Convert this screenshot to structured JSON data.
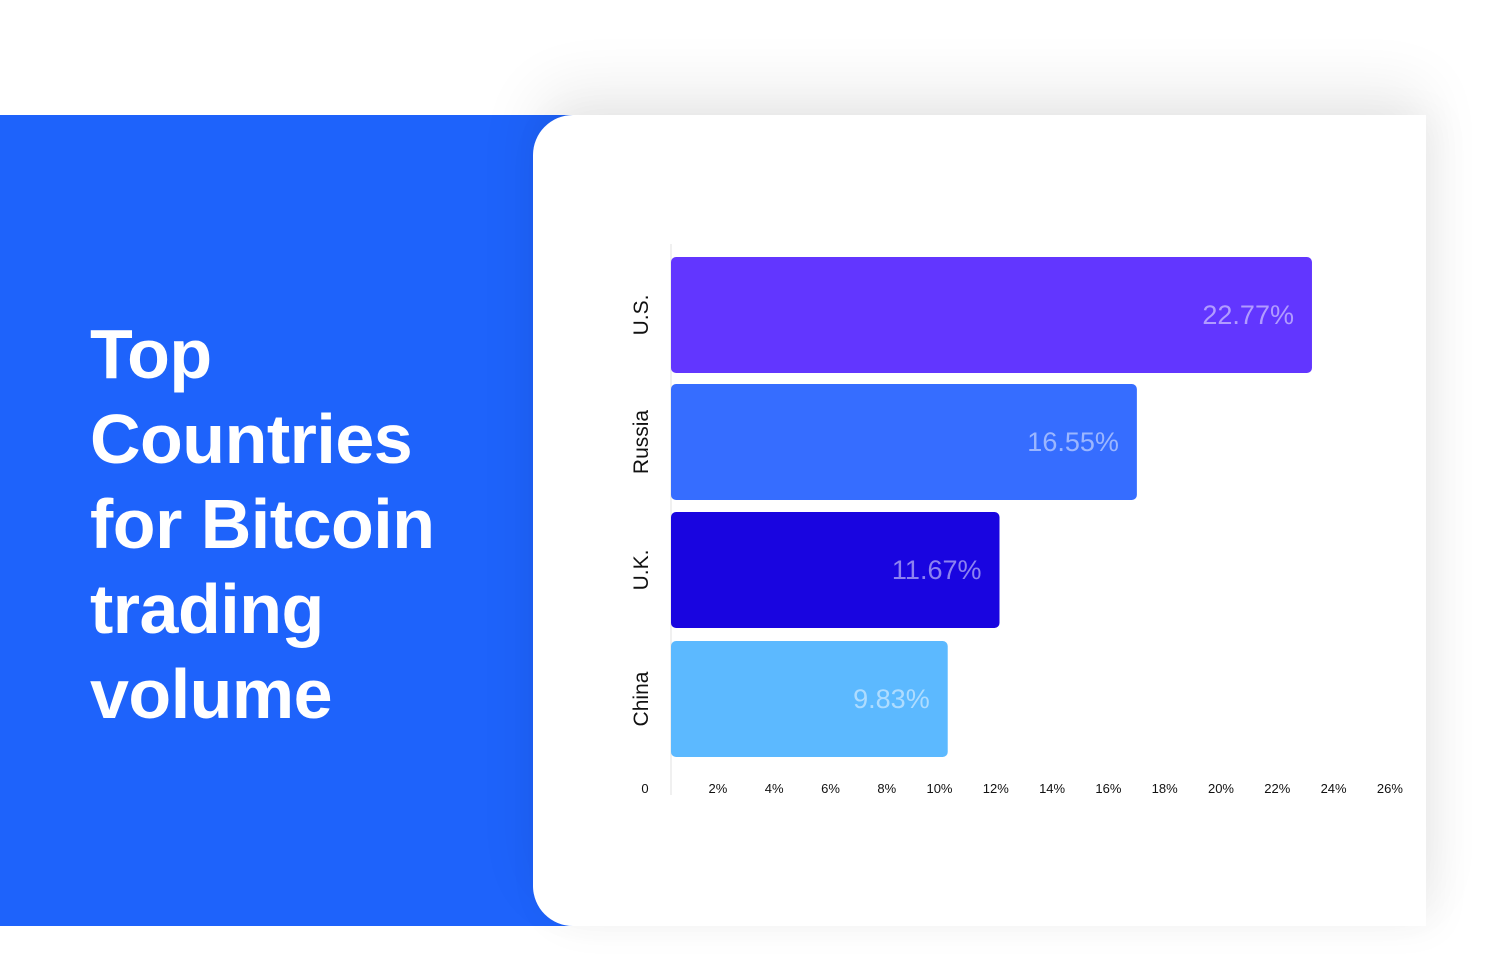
{
  "headline": {
    "lines": [
      "Top",
      "Countries",
      "for Bitcoin",
      "trading",
      "volume"
    ]
  },
  "colors": {
    "panel": "#1E63FB",
    "card": "#FFFFFF"
  },
  "chart_data": {
    "type": "bar",
    "orientation": "horizontal",
    "categories": [
      "U.S.",
      "Russia",
      "U.K.",
      "China"
    ],
    "values": [
      22.77,
      16.55,
      11.67,
      9.83
    ],
    "value_labels": [
      "22.77%",
      "16.55%",
      "11.67%",
      "9.83%"
    ],
    "bar_colors": [
      "#6236FF",
      "#366DFF",
      "#1905E0",
      "#5CB9FF"
    ],
    "x_ticks": [
      "0",
      "2%",
      "4%",
      "6%",
      "8%",
      "10%",
      "12%",
      "14%",
      "16%",
      "18%",
      "20%",
      "22%",
      "24%",
      "26%"
    ],
    "xlim": [
      0,
      26
    ],
    "title": "",
    "xlabel": "",
    "ylabel": "",
    "grid": false,
    "legend": "none"
  }
}
